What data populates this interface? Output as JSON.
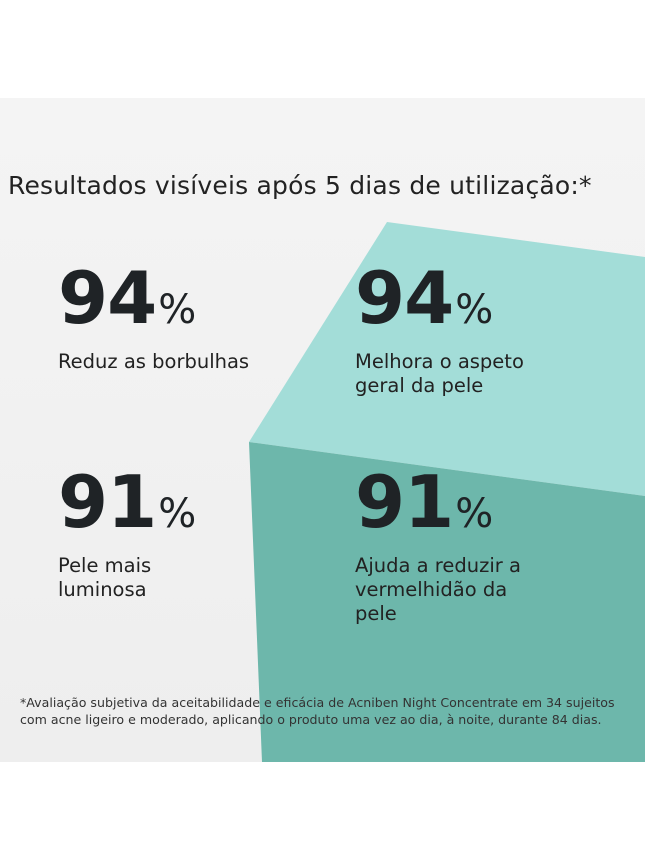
{
  "colors": {
    "cube_top": "#a3ddd8",
    "cube_front": "#6db7ab",
    "text": "#1f2326"
  },
  "title": "Resultados visíveis após 5 dias de utilização:*",
  "stats": [
    {
      "value": "94",
      "unit": "%",
      "label": "Reduz as borbulhas"
    },
    {
      "value": "94",
      "unit": "%",
      "label": "Melhora o aspeto geral da pele"
    },
    {
      "value": "91",
      "unit": "%",
      "label": "Pele mais luminosa"
    },
    {
      "value": "91",
      "unit": "%",
      "label": "Ajuda a reduzir a vermelhidão da pele"
    }
  ],
  "footnote": "*Avaliação subjetiva da aceitabilidade e eficácia de Acniben Night Concentrate em 34 sujeitos com acne ligeiro e moderado, aplicando o produto uma vez ao dia, à noite, durante 84 dias."
}
